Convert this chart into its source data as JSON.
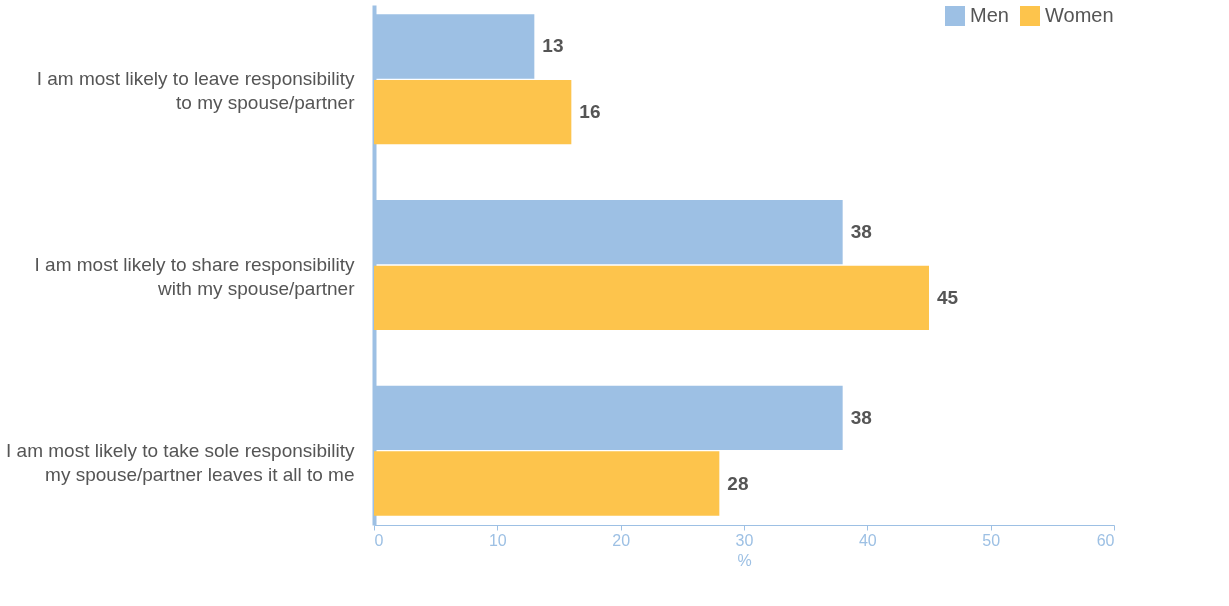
{
  "chart_data": {
    "type": "bar",
    "orientation": "horizontal",
    "xlabel": "%",
    "categories": [
      "I am most likely to leave responsibility\nto my spouse/partner",
      "I am most likely to share responsibility\nwith my spouse/partner",
      "I am most likely to take sole responsibility\nmy spouse/partner leaves it all to me"
    ],
    "series": [
      {
        "name": "Men",
        "color": "#9dc0e4",
        "values": [
          13,
          38,
          38
        ]
      },
      {
        "name": "Women",
        "color": "#fdc44c",
        "values": [
          16,
          45,
          28
        ]
      }
    ],
    "xlim": [
      0,
      60
    ],
    "xticks": [
      0,
      10,
      20,
      30,
      40,
      50,
      60
    ],
    "data_labels": true,
    "legend": "top right",
    "grid": false
  }
}
